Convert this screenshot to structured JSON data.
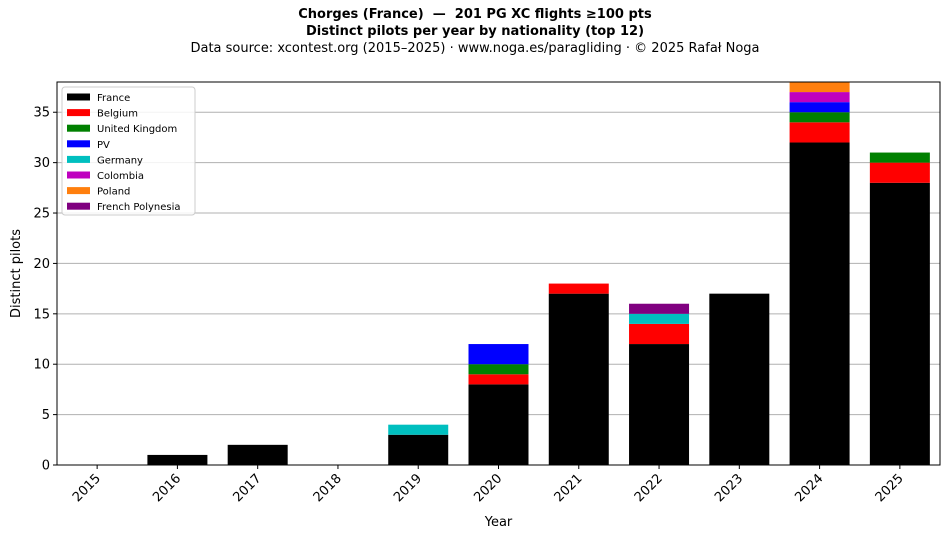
{
  "title_line1": "Chorges (France)  —  201 PG XC flights ≥100 pts",
  "title_line2": "Distinct pilots per year by nationality (top 12)",
  "subtitle": "Data source: xcontest.org (2015–2025)  ·  www.noga.es/paragliding  ·  © 2025 Rafał Noga",
  "chart_data": {
    "type": "bar",
    "stacked": true,
    "categories": [
      "2015",
      "2016",
      "2017",
      "2018",
      "2019",
      "2020",
      "2021",
      "2022",
      "2023",
      "2024",
      "2025"
    ],
    "xlabel": "Year",
    "ylabel": "Distinct pilots",
    "ylim": [
      0,
      38
    ],
    "yticks": [
      0,
      5,
      10,
      15,
      20,
      25,
      30,
      35
    ],
    "grid": "horizontal",
    "legend_position": "top-left",
    "series": [
      {
        "name": "France",
        "color": "#000000",
        "values": [
          0,
          1,
          2,
          0,
          3,
          8,
          17,
          12,
          17,
          32,
          28
        ]
      },
      {
        "name": "Belgium",
        "color": "#ff0000",
        "values": [
          0,
          0,
          0,
          0,
          0,
          1,
          1,
          2,
          0,
          2,
          2
        ]
      },
      {
        "name": "United Kingdom",
        "color": "#008000",
        "values": [
          0,
          0,
          0,
          0,
          0,
          1,
          0,
          0,
          0,
          1,
          1
        ]
      },
      {
        "name": "PV",
        "color": "#0000ff",
        "values": [
          0,
          0,
          0,
          0,
          0,
          2,
          0,
          0,
          0,
          1,
          0
        ]
      },
      {
        "name": "Germany",
        "color": "#00bfbf",
        "values": [
          0,
          0,
          0,
          0,
          1,
          0,
          0,
          1,
          0,
          0,
          0
        ]
      },
      {
        "name": "Colombia",
        "color": "#bf00bf",
        "values": [
          0,
          0,
          0,
          0,
          0,
          0,
          0,
          0,
          0,
          1,
          0
        ]
      },
      {
        "name": "Poland",
        "color": "#ff7f0e",
        "values": [
          0,
          0,
          0,
          0,
          0,
          0,
          0,
          0,
          0,
          1,
          0
        ]
      },
      {
        "name": "French Polynesia",
        "color": "#800080",
        "values": [
          0,
          0,
          0,
          0,
          0,
          0,
          0,
          1,
          0,
          0,
          0
        ]
      }
    ]
  }
}
